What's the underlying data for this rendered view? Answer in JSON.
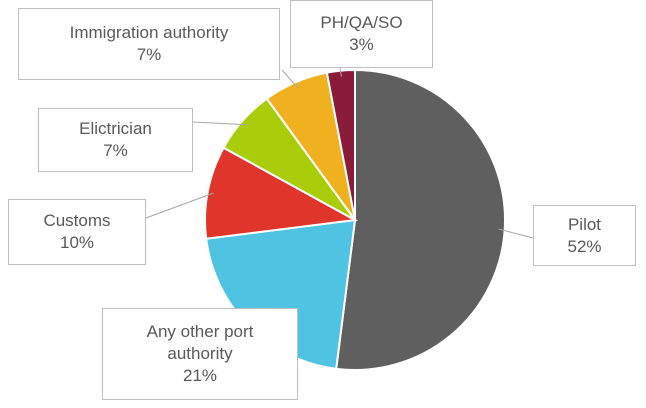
{
  "chart_data": {
    "type": "pie",
    "categories": [
      "Pilot",
      "Any other port authority",
      "Customs",
      "Elictrician",
      "Immigration authority",
      "PH/QA/SO"
    ],
    "values": [
      52,
      21,
      10,
      7,
      7,
      3
    ],
    "value_labels": [
      "52%",
      "21%",
      "10%",
      "7%",
      "7%",
      "3%"
    ],
    "colors": [
      "#5f5f5f",
      "#4fc3e1",
      "#e0352b",
      "#a9cc0b",
      "#efb11f",
      "#8a1b3b"
    ]
  }
}
